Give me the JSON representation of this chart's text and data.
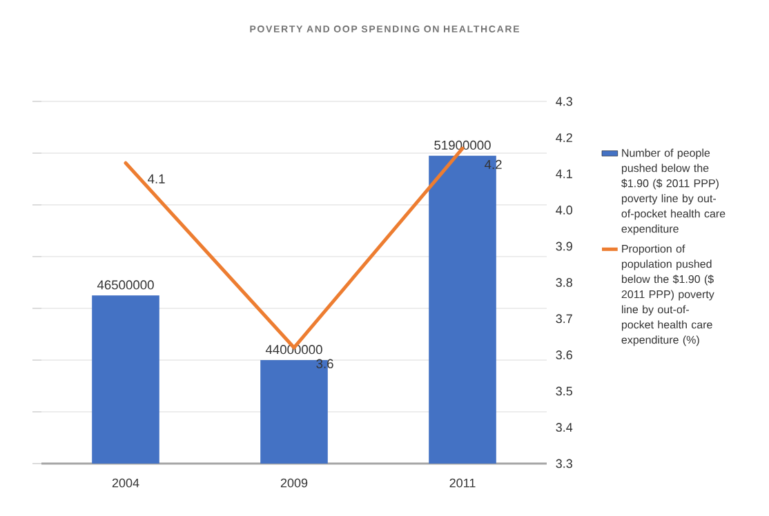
{
  "chart_data": {
    "type": "bar",
    "title": "POVERTY AND OOP SPENDING ON HEALTHCARE",
    "categories": [
      "2004",
      "2009",
      "2011"
    ],
    "series": [
      {
        "name": "Number of people pushed below the $1.90 ($ 2011 PPP) poverty line by out-of-pocket health care expenditure",
        "type": "bar",
        "color": "#4472c4",
        "values": [
          46500000,
          44000000,
          51900000
        ],
        "value_labels": [
          "46500000",
          "44000000",
          "51900000"
        ]
      },
      {
        "name": "Proportion of population pushed below the $1.90 ($ 2011 PPP) poverty line by out-of-pocket health care expenditure (%)",
        "type": "line",
        "axis": "y2",
        "color": "#ed7d31",
        "values": [
          4.13,
          3.62,
          4.17
        ],
        "value_labels": [
          "4.1",
          "3.6",
          "4.2"
        ]
      }
    ],
    "ylim": [
      40000000,
      54000000
    ],
    "yticks": [
      {
        "value": 40000000,
        "label": null
      },
      {
        "value": 42000000,
        "label": null
      },
      {
        "value": 44000000,
        "label": null
      },
      {
        "value": 46000000,
        "label": null
      },
      {
        "value": 48000000,
        "label": null
      },
      {
        "value": 50000000,
        "label": null
      },
      {
        "value": 52000000,
        "label": null
      },
      {
        "value": 54000000,
        "label": null
      }
    ],
    "y2lim": [
      3.3,
      4.3
    ],
    "y2ticks": [
      {
        "value": 3.3,
        "label": "3.3"
      },
      {
        "value": 3.4,
        "label": "3.4"
      },
      {
        "value": 3.5,
        "label": "3.5"
      },
      {
        "value": 3.6,
        "label": "3.6"
      },
      {
        "value": 3.7,
        "label": "3.7"
      },
      {
        "value": 3.8,
        "label": "3.8"
      },
      {
        "value": 3.9,
        "label": "3.9"
      },
      {
        "value": 4.0,
        "label": "4.0"
      },
      {
        "value": 4.1,
        "label": "4.1"
      },
      {
        "value": 4.2,
        "label": "4.2"
      },
      {
        "value": 4.3,
        "label": "4.3"
      }
    ],
    "grid": "y",
    "legend": "right"
  }
}
